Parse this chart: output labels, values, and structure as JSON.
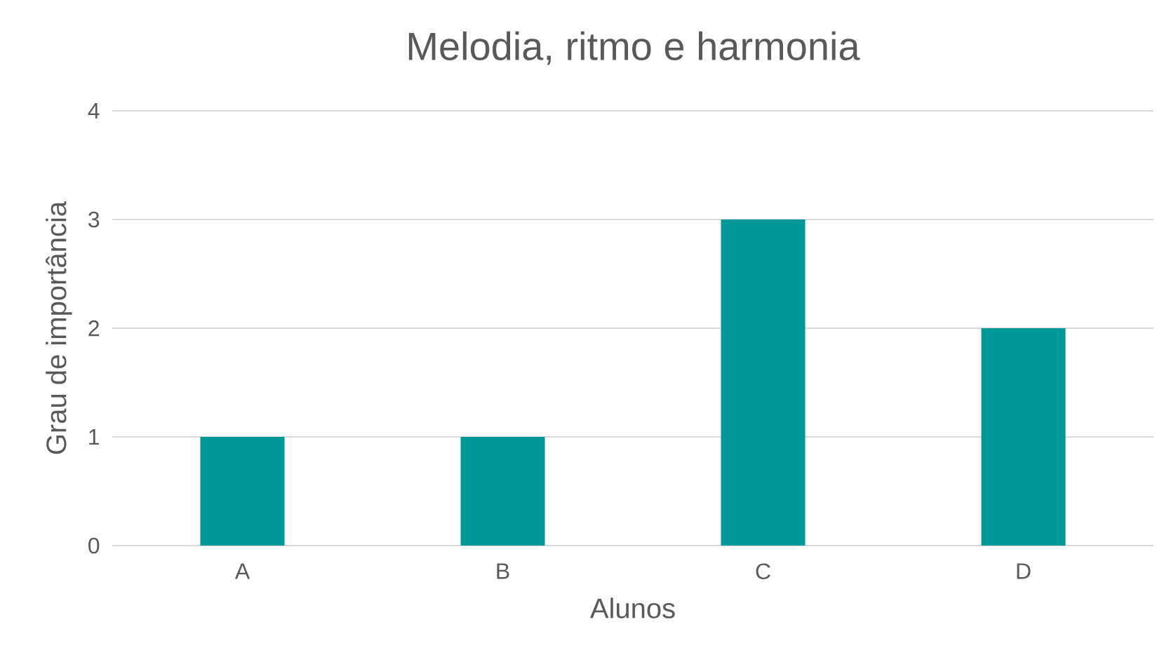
{
  "chart_data": {
    "type": "bar",
    "title": "Melodia, ritmo e harmonia",
    "xlabel": "Alunos",
    "ylabel": "Grau de importância",
    "categories": [
      "A",
      "B",
      "C",
      "D"
    ],
    "values": [
      1,
      1,
      3,
      2
    ],
    "color": "#009999",
    "ylim": [
      0,
      4
    ],
    "yticks": [
      0,
      1,
      2,
      3,
      4
    ],
    "grid": "y"
  }
}
